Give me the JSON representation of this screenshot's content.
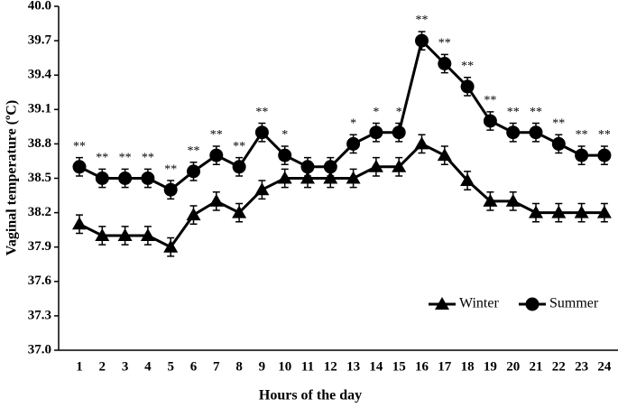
{
  "chart_data": {
    "type": "line",
    "xlabel": "Hours of the day",
    "ylabel": "Vaginal temperature (ºC)",
    "categories": [
      "1",
      "2",
      "3",
      "4",
      "5",
      "6",
      "7",
      "8",
      "9",
      "10",
      "11",
      "12",
      "13",
      "14",
      "15",
      "16",
      "17",
      "18",
      "19",
      "20",
      "21",
      "22",
      "23",
      "24"
    ],
    "series": [
      {
        "name": "Winter",
        "color": "#000000",
        "marker": "triangle",
        "values": [
          38.1,
          38.0,
          38.0,
          38.0,
          37.9,
          38.18,
          38.3,
          38.2,
          38.4,
          38.5,
          38.5,
          38.5,
          38.5,
          38.6,
          38.6,
          38.8,
          38.7,
          38.48,
          38.3,
          38.3,
          38.2,
          38.2,
          38.2,
          38.2
        ],
        "errors": [
          0.08,
          0.08,
          0.08,
          0.08,
          0.08,
          0.08,
          0.08,
          0.08,
          0.08,
          0.08,
          0.08,
          0.08,
          0.08,
          0.08,
          0.08,
          0.08,
          0.08,
          0.08,
          0.08,
          0.08,
          0.08,
          0.08,
          0.08,
          0.08
        ]
      },
      {
        "name": "Summer",
        "color": "#000000",
        "marker": "circle",
        "values": [
          38.6,
          38.5,
          38.5,
          38.5,
          38.4,
          38.56,
          38.7,
          38.6,
          38.9,
          38.7,
          38.6,
          38.6,
          38.8,
          38.9,
          38.9,
          39.7,
          39.5,
          39.3,
          39.0,
          38.9,
          38.9,
          38.8,
          38.7,
          38.7
        ],
        "errors": [
          0.08,
          0.08,
          0.08,
          0.08,
          0.08,
          0.08,
          0.08,
          0.08,
          0.08,
          0.08,
          0.08,
          0.08,
          0.08,
          0.08,
          0.08,
          0.08,
          0.08,
          0.08,
          0.08,
          0.08,
          0.08,
          0.08,
          0.08,
          0.08
        ]
      }
    ],
    "significance": [
      "**",
      "**",
      "**",
      "**",
      "**",
      "**",
      "**",
      "**",
      "**",
      "*",
      null,
      null,
      "*",
      "*",
      "*",
      "**",
      "**",
      "**",
      "**",
      "**",
      "**",
      "**",
      "**",
      "**"
    ],
    "ylim": [
      37.0,
      40.0
    ],
    "yticks": [
      {
        "value": 37.0,
        "label": "37.0"
      },
      37.3,
      37.6,
      37.9,
      38.2,
      38.5,
      38.8,
      39.1,
      39.4,
      39.7,
      {
        "value": 40.0,
        "label": "40.0"
      }
    ],
    "legend": "lower right",
    "grid": false
  }
}
